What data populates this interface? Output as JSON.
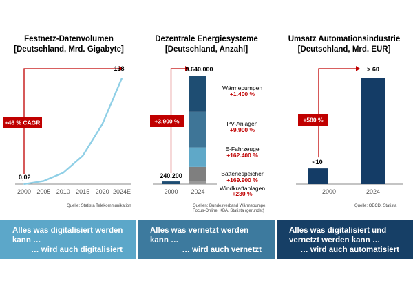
{
  "panels": [
    {
      "title_line1": "Festnetz-Datenvolumen",
      "title_line2": "[Deutschland, Mrd. Gigabyte]",
      "source": "Quelle: Statista Telekommunikation",
      "callout": "+46 % CAGR"
    },
    {
      "title_line1": "Dezentrale Energiesysteme",
      "title_line2": "[Deutschland, Anzahl]",
      "source_line1": "Quellen: Bundesverband Wärmepumpe,",
      "source_line2": "Focus-Online, KBA, Statista (gerundet)",
      "callout": "+3.900 %"
    },
    {
      "title_line1": "Umsatz Automationsindustrie",
      "title_line2": "[Deutschland, Mrd. EUR]",
      "source": "Quelle: OECD, Statista",
      "callout": "+580 %"
    }
  ],
  "chart_data": [
    {
      "type": "line",
      "title": "Festnetz-Datenvolumen [Deutschland, Mrd. Gigabyte]",
      "x": [
        "2000",
        "2005",
        "2010",
        "2015",
        "2020",
        "2024E"
      ],
      "values": [
        0.02,
        5,
        18,
        45,
        95,
        168
      ],
      "data_labels": {
        "2000": "0,02",
        "2024E": "168"
      },
      "color": "#8fcfe6"
    },
    {
      "type": "bar",
      "title": "Dezentrale Energiesysteme [Deutschland, Anzahl]",
      "categories": [
        "2000",
        "2024"
      ],
      "totals": [
        240200,
        9640000
      ],
      "total_labels": [
        "240.200",
        "9.640.000"
      ],
      "stack_2024": [
        {
          "name": "Windkraftanlagen",
          "growth": "+230 %",
          "share": 0.03,
          "color": "#999999"
        },
        {
          "name": "Batteriespeicher",
          "growth": "+169.900 %",
          "share": 0.13,
          "color": "#7f7f7f"
        },
        {
          "name": "E-Fahrzeuge",
          "growth": "+162.400 %",
          "share": 0.18,
          "color": "#5fa8c8"
        },
        {
          "name": "PV-Anlagen",
          "growth": "+9.900 %",
          "share": 0.33,
          "color": "#3e7597"
        },
        {
          "name": "Wärmepumpen",
          "growth": "+1.400 %",
          "share": 0.33,
          "color": "#1e4d72"
        }
      ]
    },
    {
      "type": "bar",
      "title": "Umsatz Automationsindustrie [Deutschland, Mrd. EUR]",
      "categories": [
        "2000",
        "2024"
      ],
      "values": [
        9,
        61
      ],
      "value_labels": [
        "<10",
        "> 60"
      ],
      "color": "#143c66"
    }
  ],
  "footer": [
    {
      "line1": "Alles was digitalisiert werden",
      "line2": "kann …",
      "line3": "… wird auch digitalisiert",
      "color": "#5ca7c9"
    },
    {
      "line1": "Alles was vernetzt werden",
      "line2": "kann …",
      "line3": "… wird auch vernetzt",
      "color": "#3d7a9e"
    },
    {
      "line1": "Alles was digitalisiert und",
      "line2": "vernetzt werden kann …",
      "line3": "… wird auch automatisiert",
      "color": "#163f66"
    }
  ],
  "colors": {
    "accent_red": "#c00000",
    "axis": "#888888"
  }
}
